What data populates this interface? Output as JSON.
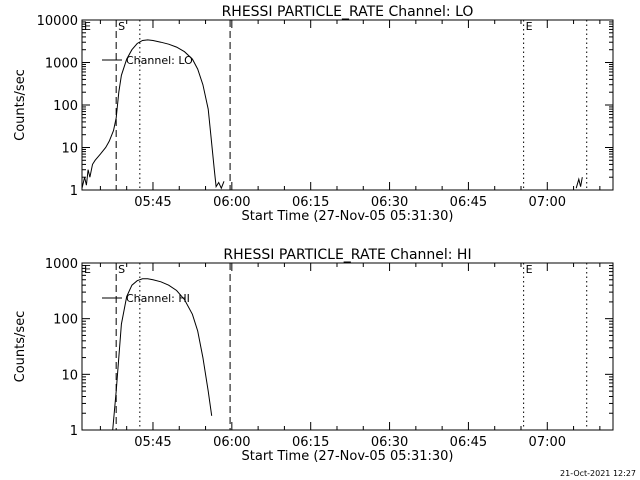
{
  "footer": {
    "timestamp": "21-Oct-2021 12:27"
  },
  "chart_data": [
    {
      "type": "line",
      "title": "RHESSI PARTICLE_RATE Channel: LO",
      "xlabel": "Start Time (27-Nov-05 05:31:30)",
      "ylabel": "Counts/sec",
      "y_scale": "log",
      "x_unit": "hh:mm",
      "xlim": [
        "05:31:30",
        "07:12:30"
      ],
      "ylim": [
        1,
        10000
      ],
      "x_tick_labels": [
        "05:45",
        "06:00",
        "06:15",
        "06:30",
        "06:45",
        "07:00"
      ],
      "y_tick_labels": [
        "1",
        "10",
        "100",
        "1000",
        "10000"
      ],
      "legend": {
        "label": "Channel: LO",
        "placement": "top-left"
      },
      "markers": [
        {
          "label": "S",
          "time": "05:38:00",
          "style": "dashed"
        },
        {
          "label": "",
          "time": "05:59:40",
          "style": "dashed"
        },
        {
          "label": "",
          "time": "05:42:30",
          "style": "dotted"
        },
        {
          "label": "E",
          "time": "06:55:30",
          "style": "dotted"
        },
        {
          "label": "",
          "time": "07:07:30",
          "style": "dotted"
        },
        {
          "label": "E",
          "time": "05:31:30",
          "style": "none"
        }
      ],
      "series": [
        {
          "name": "Channel: LO",
          "segments": [
            [
              [
                "05:31:30",
                1.1
              ],
              [
                "05:32:00",
                2
              ],
              [
                "05:32:20",
                1.3
              ],
              [
                "05:32:40",
                3
              ],
              [
                "05:33:00",
                2
              ],
              [
                "05:33:30",
                4
              ],
              [
                "05:34:00",
                5
              ],
              [
                "05:35:00",
                7
              ],
              [
                "05:36:00",
                10
              ],
              [
                "05:36:40",
                14
              ],
              [
                "05:37:30",
                25
              ],
              [
                "05:38:00",
                50
              ],
              [
                "05:38:30",
                200
              ],
              [
                "05:39:00",
                500
              ],
              [
                "05:40:00",
                1200
              ],
              [
                "05:41:00",
                2000
              ],
              [
                "05:42:00",
                2800
              ],
              [
                "05:43:00",
                3300
              ],
              [
                "05:44:00",
                3400
              ],
              [
                "05:45:00",
                3300
              ],
              [
                "05:46:30",
                3000
              ],
              [
                "05:48:00",
                2700
              ],
              [
                "05:49:30",
                2300
              ],
              [
                "05:51:00",
                1800
              ],
              [
                "05:52:30",
                1200
              ],
              [
                "05:53:30",
                700
              ],
              [
                "05:54:30",
                300
              ],
              [
                "05:55:30",
                80
              ],
              [
                "05:56:00",
                20
              ],
              [
                "05:56:40",
                3
              ],
              [
                "05:57:00",
                1.2
              ],
              [
                "05:57:30",
                1.5
              ],
              [
                "05:58:00",
                1.1
              ],
              [
                "05:58:30",
                1.6
              ]
            ],
            [
              [
                "07:05:30",
                1.1
              ],
              [
                "07:06:00",
                1.8
              ],
              [
                "07:06:20",
                1.2
              ],
              [
                "07:06:40",
                2
              ]
            ]
          ]
        }
      ]
    },
    {
      "type": "line",
      "title": "RHESSI PARTICLE_RATE Channel: HI",
      "xlabel": "Start Time (27-Nov-05 05:31:30)",
      "ylabel": "Counts/sec",
      "y_scale": "log",
      "x_unit": "hh:mm",
      "xlim": [
        "05:31:30",
        "07:12:30"
      ],
      "ylim": [
        1,
        1000
      ],
      "x_tick_labels": [
        "05:45",
        "06:00",
        "06:15",
        "06:30",
        "06:45",
        "07:00"
      ],
      "y_tick_labels": [
        "1",
        "10",
        "100",
        "1000"
      ],
      "legend": {
        "label": "Channel: HI",
        "placement": "top-left"
      },
      "markers": [
        {
          "label": "S",
          "time": "05:38:00",
          "style": "dashed"
        },
        {
          "label": "",
          "time": "05:59:40",
          "style": "dashed"
        },
        {
          "label": "",
          "time": "05:42:30",
          "style": "dotted"
        },
        {
          "label": "E",
          "time": "06:55:30",
          "style": "dotted"
        },
        {
          "label": "",
          "time": "07:07:30",
          "style": "dotted"
        },
        {
          "label": "E",
          "time": "05:31:30",
          "style": "none"
        }
      ],
      "series": [
        {
          "name": "Channel: HI",
          "segments": [
            [
              [
                "05:37:20",
                1
              ],
              [
                "05:38:00",
                5
              ],
              [
                "05:38:30",
                20
              ],
              [
                "05:39:00",
                80
              ],
              [
                "05:40:00",
                250
              ],
              [
                "05:41:00",
                400
              ],
              [
                "05:42:00",
                480
              ],
              [
                "05:43:00",
                520
              ],
              [
                "05:44:00",
                520
              ],
              [
                "05:45:00",
                500
              ],
              [
                "05:46:30",
                460
              ],
              [
                "05:48:00",
                400
              ],
              [
                "05:49:30",
                320
              ],
              [
                "05:51:00",
                220
              ],
              [
                "05:52:30",
                120
              ],
              [
                "05:53:30",
                60
              ],
              [
                "05:54:30",
                20
              ],
              [
                "05:55:30",
                5
              ],
              [
                "05:56:10",
                1.8
              ]
            ]
          ]
        }
      ]
    }
  ]
}
